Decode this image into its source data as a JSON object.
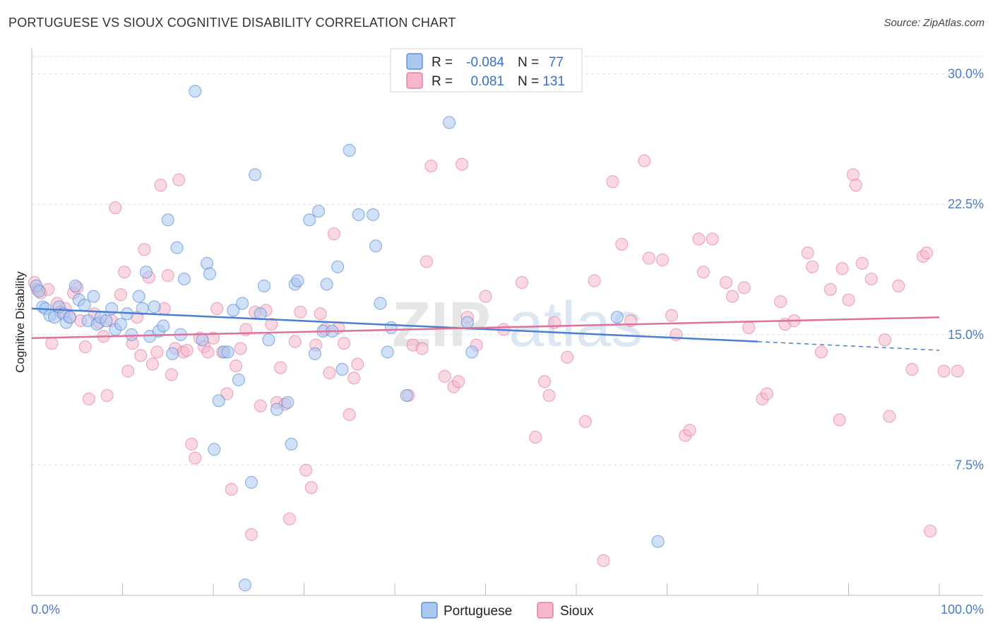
{
  "title": "PORTUGUESE VS SIOUX COGNITIVE DISABILITY CORRELATION CHART",
  "source": "Source: ZipAtlas.com",
  "watermark": {
    "part1": "ZIP",
    "part2": "atlas"
  },
  "legend_top": {
    "rows": [
      {
        "r_label": "R =",
        "r_value": "-0.084",
        "n_label": "N =",
        "n_value": "77",
        "color": "#a9c8f0"
      },
      {
        "r_label": "R =",
        "r_value": "0.081",
        "n_label": "N =",
        "n_value": "131",
        "color": "#f5b8cb"
      }
    ]
  },
  "legend_bottom": [
    {
      "label": "Portuguese",
      "color": "#a9c8f0"
    },
    {
      "label": "Sioux",
      "color": "#f5b8cb"
    }
  ],
  "chart_data": {
    "type": "scatter",
    "title": "PORTUGUESE VS SIOUX COGNITIVE DISABILITY CORRELATION CHART",
    "xlabel": "",
    "ylabel": "Cognitive Disability",
    "xlim": [
      0,
      100
    ],
    "ylim": [
      0,
      31
    ],
    "x_tick_labels": [
      "0.0%",
      "100.0%"
    ],
    "y_ticks": [
      7.5,
      15.0,
      22.5,
      30.0
    ],
    "y_tick_labels": [
      "7.5%",
      "15.0%",
      "22.5%",
      "30.0%"
    ],
    "grid": "horizontal dashed",
    "legend": "top-center",
    "series": [
      {
        "name": "Portuguese",
        "color": "#4a7fd1",
        "fill": "#a9c8f0",
        "trend": {
          "x0": 0,
          "y0": 16.5,
          "x1": 80,
          "y1": 14.6,
          "dash_x1": 100,
          "dash_y1": 14.1
        },
        "points": [
          [
            0.5,
            17.8
          ],
          [
            0.8,
            17.5
          ],
          [
            1.2,
            16.6
          ],
          [
            1.5,
            16.5
          ],
          [
            2.0,
            16.1
          ],
          [
            2.5,
            16.0
          ],
          [
            3.0,
            16.6
          ],
          [
            3.5,
            16.2
          ],
          [
            3.8,
            15.7
          ],
          [
            4.2,
            16.0
          ],
          [
            4.8,
            17.8
          ],
          [
            5.2,
            17.0
          ],
          [
            5.8,
            16.7
          ],
          [
            6.2,
            15.8
          ],
          [
            6.8,
            17.2
          ],
          [
            7.2,
            15.6
          ],
          [
            7.6,
            16.0
          ],
          [
            8.2,
            15.8
          ],
          [
            8.8,
            16.5
          ],
          [
            9.2,
            15.3
          ],
          [
            9.8,
            15.6
          ],
          [
            10.5,
            16.2
          ],
          [
            11.0,
            15.0
          ],
          [
            11.8,
            17.2
          ],
          [
            12.2,
            16.5
          ],
          [
            12.6,
            18.6
          ],
          [
            13.0,
            14.9
          ],
          [
            13.5,
            16.6
          ],
          [
            14.0,
            15.2
          ],
          [
            14.5,
            15.5
          ],
          [
            15.0,
            21.6
          ],
          [
            15.5,
            13.9
          ],
          [
            16.0,
            20.0
          ],
          [
            16.4,
            15.0
          ],
          [
            16.8,
            18.2
          ],
          [
            18.0,
            29.0
          ],
          [
            18.8,
            14.7
          ],
          [
            19.3,
            19.1
          ],
          [
            19.6,
            18.5
          ],
          [
            20.1,
            8.4
          ],
          [
            20.6,
            11.2
          ],
          [
            21.2,
            14.0
          ],
          [
            21.6,
            14.0
          ],
          [
            22.2,
            16.4
          ],
          [
            22.8,
            12.4
          ],
          [
            23.2,
            16.8
          ],
          [
            23.5,
            0.6
          ],
          [
            24.2,
            6.5
          ],
          [
            24.6,
            24.2
          ],
          [
            25.2,
            16.2
          ],
          [
            25.6,
            17.8
          ],
          [
            26.1,
            14.7
          ],
          [
            27.0,
            10.7
          ],
          [
            28.2,
            11.1
          ],
          [
            28.6,
            8.7
          ],
          [
            29.0,
            17.9
          ],
          [
            29.3,
            18.1
          ],
          [
            30.6,
            21.6
          ],
          [
            31.2,
            13.9
          ],
          [
            31.6,
            22.1
          ],
          [
            32.1,
            15.2
          ],
          [
            32.5,
            17.9
          ],
          [
            33.1,
            15.2
          ],
          [
            33.7,
            18.9
          ],
          [
            34.2,
            13.0
          ],
          [
            35.0,
            25.6
          ],
          [
            36.0,
            21.9
          ],
          [
            37.6,
            21.9
          ],
          [
            37.9,
            20.1
          ],
          [
            38.4,
            16.8
          ],
          [
            39.2,
            14.0
          ],
          [
            39.6,
            15.4
          ],
          [
            41.3,
            11.5
          ],
          [
            46.0,
            27.2
          ],
          [
            48.0,
            15.7
          ],
          [
            48.5,
            14.0
          ],
          [
            64.5,
            16.0
          ],
          [
            69.0,
            3.1
          ]
        ]
      },
      {
        "name": "Sioux",
        "color": "#e0719a",
        "fill": "#f5b8cb",
        "trend": {
          "x0": 0,
          "y0": 14.8,
          "x1": 100,
          "y1": 16.0
        },
        "points": [
          [
            0.3,
            18.0
          ],
          [
            0.6,
            17.6
          ],
          [
            1.0,
            17.4
          ],
          [
            1.8,
            17.6
          ],
          [
            2.2,
            14.5
          ],
          [
            2.8,
            16.8
          ],
          [
            3.2,
            16.3
          ],
          [
            3.7,
            16.5
          ],
          [
            4.2,
            16.0
          ],
          [
            4.6,
            17.4
          ],
          [
            5.0,
            17.7
          ],
          [
            5.4,
            15.8
          ],
          [
            5.9,
            14.3
          ],
          [
            6.3,
            11.3
          ],
          [
            6.9,
            16.2
          ],
          [
            7.4,
            15.7
          ],
          [
            7.9,
            14.9
          ],
          [
            8.3,
            11.5
          ],
          [
            8.8,
            15.8
          ],
          [
            9.2,
            22.3
          ],
          [
            9.8,
            17.3
          ],
          [
            10.2,
            18.6
          ],
          [
            10.6,
            12.9
          ],
          [
            11.1,
            14.5
          ],
          [
            11.6,
            16.0
          ],
          [
            12.0,
            13.8
          ],
          [
            12.4,
            19.9
          ],
          [
            12.9,
            18.3
          ],
          [
            13.3,
            13.3
          ],
          [
            13.8,
            14.0
          ],
          [
            14.2,
            23.6
          ],
          [
            14.6,
            16.5
          ],
          [
            15.0,
            18.4
          ],
          [
            15.4,
            12.7
          ],
          [
            15.8,
            14.2
          ],
          [
            16.2,
            23.9
          ],
          [
            16.7,
            14.0
          ],
          [
            17.1,
            14.1
          ],
          [
            17.6,
            8.7
          ],
          [
            18.0,
            7.9
          ],
          [
            18.5,
            14.8
          ],
          [
            19.0,
            14.3
          ],
          [
            19.4,
            14.0
          ],
          [
            20.0,
            14.8
          ],
          [
            20.4,
            16.5
          ],
          [
            21.0,
            14.0
          ],
          [
            21.5,
            11.6
          ],
          [
            22.0,
            6.1
          ],
          [
            22.5,
            13.2
          ],
          [
            23.0,
            14.2
          ],
          [
            23.6,
            15.3
          ],
          [
            24.2,
            3.5
          ],
          [
            24.6,
            16.3
          ],
          [
            25.2,
            10.9
          ],
          [
            25.8,
            16.4
          ],
          [
            26.4,
            15.6
          ],
          [
            27.0,
            11.1
          ],
          [
            27.4,
            13.1
          ],
          [
            27.9,
            11.0
          ],
          [
            28.4,
            4.4
          ],
          [
            29.0,
            14.6
          ],
          [
            29.6,
            16.3
          ],
          [
            30.2,
            7.2
          ],
          [
            30.8,
            6.2
          ],
          [
            31.3,
            14.4
          ],
          [
            31.8,
            16.2
          ],
          [
            32.3,
            15.3
          ],
          [
            32.8,
            12.8
          ],
          [
            33.3,
            20.8
          ],
          [
            33.8,
            15.4
          ],
          [
            34.4,
            14.5
          ],
          [
            35.0,
            10.4
          ],
          [
            35.5,
            12.5
          ],
          [
            35.9,
            13.3
          ],
          [
            41.5,
            11.5
          ],
          [
            42.0,
            14.4
          ],
          [
            43.0,
            14.2
          ],
          [
            43.5,
            19.2
          ],
          [
            44.0,
            24.7
          ],
          [
            45.5,
            12.6
          ],
          [
            46.5,
            12.0
          ],
          [
            47.0,
            12.3
          ],
          [
            47.4,
            24.8
          ],
          [
            48.0,
            16.0
          ],
          [
            49.0,
            14.4
          ],
          [
            50.0,
            17.2
          ],
          [
            52.0,
            15.3
          ],
          [
            54.0,
            18.0
          ],
          [
            55.5,
            9.1
          ],
          [
            56.5,
            12.3
          ],
          [
            57.0,
            11.5
          ],
          [
            57.6,
            15.7
          ],
          [
            59.0,
            13.7
          ],
          [
            61.0,
            10.0
          ],
          [
            62.0,
            18.1
          ],
          [
            63.0,
            2.0
          ],
          [
            64.0,
            23.8
          ],
          [
            65.0,
            20.2
          ],
          [
            66.0,
            15.8
          ],
          [
            67.5,
            25.0
          ],
          [
            68.0,
            19.4
          ],
          [
            69.5,
            19.3
          ],
          [
            70.5,
            16.1
          ],
          [
            71.0,
            15.0
          ],
          [
            72.0,
            9.2
          ],
          [
            72.5,
            9.5
          ],
          [
            73.5,
            20.5
          ],
          [
            74.0,
            18.6
          ],
          [
            75.0,
            20.5
          ],
          [
            76.5,
            18.0
          ],
          [
            77.2,
            17.2
          ],
          [
            78.5,
            17.7
          ],
          [
            79.0,
            15.4
          ],
          [
            80.5,
            11.3
          ],
          [
            81.0,
            11.6
          ],
          [
            82.5,
            16.9
          ],
          [
            83.0,
            15.6
          ],
          [
            84.0,
            15.8
          ],
          [
            85.5,
            19.7
          ],
          [
            86.0,
            18.9
          ],
          [
            87.0,
            14.0
          ],
          [
            88.0,
            17.6
          ],
          [
            89.0,
            10.1
          ],
          [
            89.3,
            18.8
          ],
          [
            90.0,
            17.0
          ],
          [
            90.5,
            24.2
          ],
          [
            90.8,
            23.6
          ],
          [
            91.5,
            19.1
          ],
          [
            92.5,
            18.2
          ],
          [
            94.0,
            14.7
          ],
          [
            94.5,
            10.3
          ],
          [
            95.5,
            17.8
          ],
          [
            97.0,
            13.0
          ],
          [
            98.2,
            19.5
          ],
          [
            98.6,
            19.7
          ],
          [
            99.0,
            3.7
          ],
          [
            100.5,
            12.9
          ],
          [
            102.0,
            12.9
          ]
        ]
      }
    ]
  }
}
